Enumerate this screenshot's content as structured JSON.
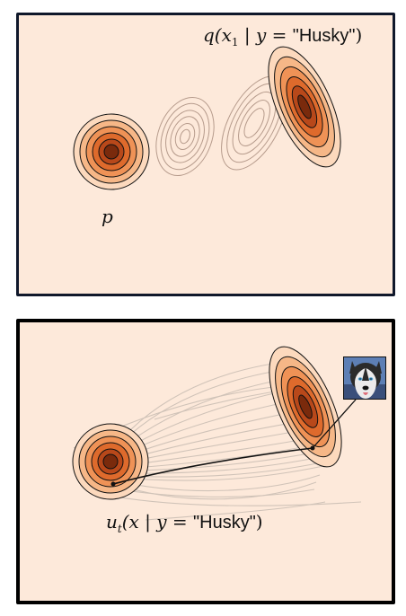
{
  "top_panel": {
    "source_label": "p",
    "target_label": {
      "fn": "q(x",
      "sub": "1",
      "cond": " | y = ",
      "value": "\"Husky\"",
      "close": ")"
    }
  },
  "bottom_panel": {
    "flow_label": {
      "fn": "u",
      "sub": "t",
      "args": "(x | y = ",
      "value": "\"Husky\"",
      "close": ")"
    },
    "thumbnail": "husky-dog-face"
  },
  "colors": {
    "background": "#fde9da",
    "contour_dark": "#8a2a0a",
    "contour_mid": "#d65a1c",
    "contour_light": "#f4b27e",
    "intermediate_contour": "#b69b8c",
    "path_gray": "#c9bdb3"
  }
}
